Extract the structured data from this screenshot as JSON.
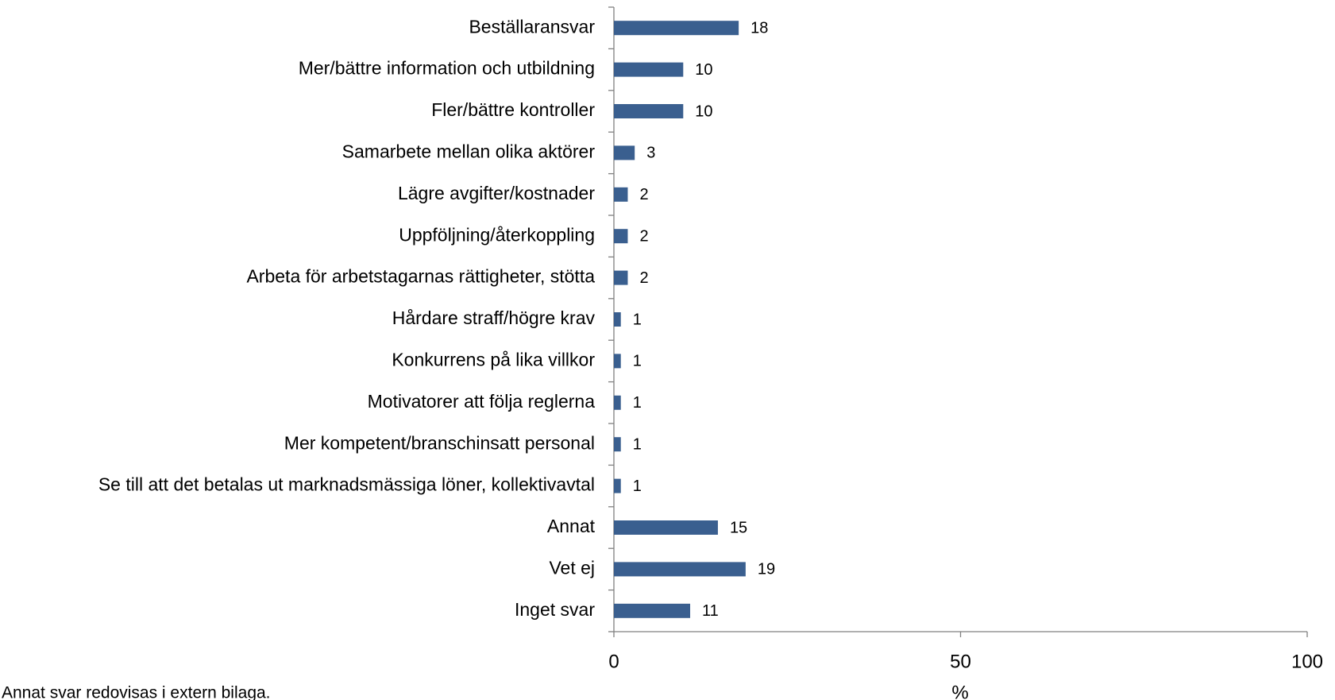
{
  "chart_data": {
    "type": "bar",
    "orientation": "horizontal",
    "categories": [
      "Beställaransvar",
      "Mer/bättre information och utbildning",
      "Fler/bättre kontroller",
      "Samarbete mellan olika aktörer",
      "Lägre avgifter/kostnader",
      "Uppföljning/återkoppling",
      "Arbeta för arbetstagarnas rättigheter, stötta",
      "Hårdare straff/högre krav",
      "Konkurrens på lika villkor",
      "Motivatorer att följa reglerna",
      "Mer kompetent/branschinsatt personal",
      "Se till att det betalas ut marknadsmässiga löner, kollektivavtal",
      "Annat",
      "Vet ej",
      "Inget svar"
    ],
    "values": [
      18,
      10,
      10,
      3,
      2,
      2,
      2,
      1,
      1,
      1,
      1,
      1,
      15,
      19,
      11
    ],
    "color": "#3a5f8f",
    "xlabel": "%",
    "xlim": [
      0,
      100
    ],
    "xticks": [
      0,
      50,
      100
    ],
    "note": "Annat svar redovisas i extern bilaga."
  }
}
